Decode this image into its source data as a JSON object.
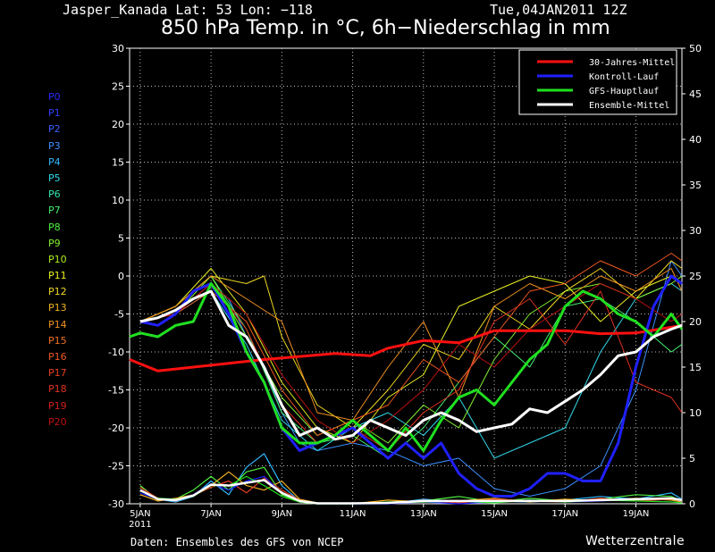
{
  "header": {
    "location": "Jasper_Kanada  Lat: 53 Lon: −118",
    "runtime": "Tue,04JAN2011 12Z",
    "title": "850 hPa Temp. in °C, 6h−Niederschlag in mm"
  },
  "footer": {
    "source": "Daten: Ensembles des GFS von NCEP",
    "brand": "Wetterzentrale"
  },
  "ensemble_members": [
    {
      "label": "P0",
      "color": "#2a2aff"
    },
    {
      "label": "P1",
      "color": "#3040ff"
    },
    {
      "label": "P2",
      "color": "#3a60ff"
    },
    {
      "label": "P3",
      "color": "#3a90ff"
    },
    {
      "label": "P4",
      "color": "#30b8ff"
    },
    {
      "label": "P5",
      "color": "#30d8e8"
    },
    {
      "label": "P6",
      "color": "#30e8b0"
    },
    {
      "label": "P7",
      "color": "#40f070"
    },
    {
      "label": "P8",
      "color": "#50f040"
    },
    {
      "label": "P9",
      "color": "#80f030"
    },
    {
      "label": "P10",
      "color": "#b0f020"
    },
    {
      "label": "P11",
      "color": "#e8f020"
    },
    {
      "label": "P12",
      "color": "#f0d820"
    },
    {
      "label": "P13",
      "color": "#f0b020"
    },
    {
      "label": "P14",
      "color": "#f09020"
    },
    {
      "label": "P15",
      "color": "#f07020"
    },
    {
      "label": "P16",
      "color": "#f05820"
    },
    {
      "label": "P17",
      "color": "#e84020"
    },
    {
      "label": "P18",
      "color": "#e03020"
    },
    {
      "label": "P19",
      "color": "#d02018"
    },
    {
      "label": "P20",
      "color": "#c01010"
    }
  ],
  "chart_data": {
    "type": "line",
    "title": "850 hPa Temp. in °C, 6h−Niederschlag in mm",
    "x_ticks": [
      {
        "day": 5,
        "label": "5JAN",
        "sublabel": "2011"
      },
      {
        "day": 7,
        "label": "7JAN"
      },
      {
        "day": 9,
        "label": "9JAN"
      },
      {
        "day": 11,
        "label": "11JAN"
      },
      {
        "day": 13,
        "label": "13JAN"
      },
      {
        "day": 15,
        "label": "15JAN"
      },
      {
        "day": 17,
        "label": "17JAN"
      },
      {
        "day": 19,
        "label": "19JAN"
      }
    ],
    "xlim": [
      4.7,
      20.3
    ],
    "ylim_left": [
      -30,
      30
    ],
    "yticks_left": [
      -30,
      -25,
      -20,
      -15,
      -10,
      -5,
      0,
      5,
      10,
      15,
      20,
      25,
      30
    ],
    "ylim_right": [
      0,
      50
    ],
    "yticks_right": [
      0,
      5,
      10,
      15,
      20,
      25,
      30,
      35,
      40,
      45,
      50
    ],
    "grid": true,
    "legend_position": "top-right",
    "legend": [
      {
        "name": "30-Jahres-Mittel",
        "color": "#ff1010"
      },
      {
        "name": "Kontroll-Lauf",
        "color": "#2020ff"
      },
      {
        "name": "GFS-Hauptlauf",
        "color": "#20e020"
      },
      {
        "name": "Ensemble-Mittel",
        "color": "#ffffff"
      }
    ],
    "series": [
      {
        "name": "30-Jahres-Mittel",
        "color": "#ff1010",
        "width": 3,
        "x": [
          4.7,
          5.5,
          6.5,
          7.5,
          8.5,
          9.5,
          10.5,
          11.5,
          12.0,
          13.0,
          14.0,
          15.0,
          16.0,
          17.0,
          18.0,
          19.0,
          20.3
        ],
        "y": [
          -11.0,
          -12.5,
          -12.0,
          -11.5,
          -11.0,
          -10.6,
          -10.2,
          -10.5,
          -9.5,
          -8.5,
          -8.8,
          -7.2,
          -7.2,
          -7.2,
          -7.6,
          -7.5,
          -6.5
        ]
      },
      {
        "name": "Kontroll-Lauf",
        "color": "#2020ff",
        "width": 3,
        "x": [
          5.0,
          5.5,
          6.0,
          6.5,
          7.0,
          7.5,
          8.0,
          8.5,
          9.0,
          9.5,
          10.0,
          10.5,
          11.0,
          11.5,
          12.0,
          12.5,
          13.0,
          13.5,
          14.0,
          14.5,
          15.0,
          15.5,
          16.0,
          16.5,
          17.0,
          17.5,
          18.0,
          18.5,
          19.0,
          19.5,
          20.0,
          20.3
        ],
        "y": [
          -6,
          -6.5,
          -5,
          -2,
          -1,
          -5,
          -10,
          -14,
          -20,
          -23,
          -22,
          -21,
          -20,
          -22,
          -24,
          -22,
          -24,
          -22,
          -26,
          -28,
          -29,
          -29,
          -28,
          -26,
          -26,
          -27,
          -27,
          -22,
          -12,
          -4,
          0,
          -1
        ]
      },
      {
        "name": "GFS-Hauptlauf",
        "color": "#20e020",
        "width": 3,
        "x": [
          4.7,
          5.0,
          5.5,
          6.0,
          6.5,
          7.0,
          7.5,
          8.0,
          8.5,
          9.0,
          9.5,
          10.0,
          10.5,
          11.0,
          11.5,
          12.0,
          12.5,
          13.0,
          13.5,
          14.0,
          14.5,
          15.0,
          15.5,
          16.0,
          16.5,
          17.0,
          17.5,
          18.0,
          18.5,
          19.0,
          19.5,
          20.0,
          20.3
        ],
        "y": [
          -8,
          -7.5,
          -8,
          -6.5,
          -6,
          -1,
          -4,
          -10,
          -14,
          -20,
          -22,
          -22,
          -21,
          -19,
          -21,
          -23,
          -20,
          -23,
          -19,
          -16,
          -15,
          -17,
          -14,
          -11,
          -9,
          -4,
          -2,
          -3,
          -5,
          -6,
          -8,
          -5,
          -7
        ]
      },
      {
        "name": "Ensemble-Mittel",
        "color": "#ffffff",
        "width": 3,
        "x": [
          5.0,
          5.5,
          6.0,
          6.5,
          7.0,
          7.5,
          8.0,
          8.5,
          9.0,
          9.5,
          10.0,
          10.5,
          11.0,
          11.5,
          12.0,
          12.5,
          13.0,
          13.5,
          14.0,
          14.5,
          15.0,
          15.5,
          16.0,
          16.5,
          17.0,
          17.5,
          18.0,
          18.5,
          19.0,
          19.5,
          20.0,
          20.3
        ],
        "y": [
          -6,
          -5.5,
          -4.5,
          -3,
          -2,
          -6.5,
          -8,
          -12,
          -17,
          -21,
          -20,
          -21.5,
          -21,
          -19,
          -20,
          -21,
          -19,
          -18,
          -19,
          -20.5,
          -20,
          -19.5,
          -17.5,
          -18,
          -16.5,
          -15,
          -13,
          -10.5,
          -10,
          -8,
          -7,
          -6.5
        ]
      },
      {
        "name": "P3",
        "color": "#3a90ff",
        "width": 1,
        "x": [
          5.0,
          6.0,
          7.0,
          7.5,
          8.0,
          8.5,
          9.0,
          9.5,
          10.0,
          11.0,
          12.0,
          13.0,
          14.0,
          15.0,
          16.0,
          17.0,
          18.0,
          19.0,
          20.0,
          20.3
        ],
        "y": [
          -6,
          -5,
          -1,
          -3,
          -8,
          -12,
          -18,
          -22,
          -23,
          -22,
          -23,
          -25,
          -24,
          -28,
          -29,
          -28,
          -25,
          -15,
          2,
          0
        ]
      },
      {
        "name": "P5",
        "color": "#30d8e8",
        "width": 1,
        "x": [
          5.0,
          6.0,
          7.0,
          8.0,
          9.0,
          10.0,
          11.0,
          12.0,
          13.0,
          14.0,
          15.0,
          16.0,
          17.0,
          18.0,
          19.0,
          20.0,
          20.3
        ],
        "y": [
          -6,
          -5,
          -2,
          -9,
          -19,
          -23,
          -20,
          -18,
          -21,
          -16,
          -24,
          -22,
          -20,
          -10,
          -3,
          -1,
          -2
        ]
      },
      {
        "name": "P7",
        "color": "#40f070",
        "width": 1,
        "x": [
          5.0,
          6.0,
          7.0,
          8.0,
          9.0,
          10.0,
          11.0,
          12.0,
          13.0,
          14.0,
          15.0,
          16.0,
          17.0,
          18.0,
          19.0,
          20.0,
          20.3
        ],
        "y": [
          -6,
          -4,
          0,
          -7,
          -18,
          -22,
          -21,
          -24,
          -20,
          -14,
          -8,
          -12,
          -4,
          -3,
          -6,
          -10,
          -9
        ]
      },
      {
        "name": "P9",
        "color": "#80f030",
        "width": 1,
        "x": [
          5.0,
          6.0,
          7.0,
          8.0,
          9.0,
          10.0,
          11.0,
          12.0,
          13.0,
          14.0,
          15.0,
          16.0,
          17.0,
          18.0,
          19.0,
          20.0,
          20.3
        ],
        "y": [
          -6,
          -5,
          0,
          -8,
          -16,
          -21,
          -19,
          -22,
          -17,
          -20,
          -11,
          -5,
          -2,
          -1,
          -3,
          -1,
          0
        ]
      },
      {
        "name": "P11",
        "color": "#e8f020",
        "width": 1,
        "x": [
          5.0,
          6.0,
          7.0,
          8.0,
          9.0,
          10.0,
          11.0,
          12.0,
          13.0,
          14.0,
          15.0,
          16.0,
          17.0,
          18.0,
          19.0,
          20.0,
          20.3
        ],
        "y": [
          -6,
          -4,
          1,
          -5,
          -14,
          -20,
          -22,
          -16,
          -13,
          -4,
          -2,
          0,
          -1,
          -6,
          -2,
          0,
          -1
        ]
      },
      {
        "name": "P12",
        "color": "#f0d820",
        "width": 1,
        "x": [
          5.0,
          6.0,
          7.0,
          8.0,
          8.5,
          9.0,
          10.0,
          11.0,
          12.0,
          13.0,
          14.0,
          15.0,
          16.0,
          17.0,
          18.0,
          19.0,
          20.0,
          20.3
        ],
        "y": [
          -6,
          -4,
          0,
          -1,
          0,
          -8,
          -17,
          -20,
          -15,
          -9,
          -11,
          -4,
          -7,
          -2,
          1,
          -3,
          2,
          1
        ]
      },
      {
        "name": "P14",
        "color": "#f09020",
        "width": 1,
        "x": [
          5.0,
          6.0,
          7.0,
          8.0,
          9.0,
          9.5,
          10.0,
          11.0,
          12.0,
          13.0,
          14.0,
          15.0,
          16.0,
          17.0,
          18.0,
          19.0,
          20.0,
          20.3
        ],
        "y": [
          -6,
          -4,
          0,
          -3,
          -6,
          -12,
          -18,
          -19,
          -12,
          -6,
          -16,
          -4,
          -1,
          -3,
          0,
          -2,
          1,
          -2
        ]
      },
      {
        "name": "P16",
        "color": "#f05820",
        "width": 1,
        "x": [
          5.0,
          6.0,
          7.0,
          8.0,
          9.0,
          10.0,
          11.0,
          12.0,
          13.0,
          14.0,
          15.0,
          16.0,
          17.0,
          18.0,
          19.0,
          20.0,
          20.3
        ],
        "y": [
          -6,
          -5,
          -2,
          -6,
          -15,
          -21,
          -19,
          -17,
          -11,
          -14,
          -8,
          -2,
          -1,
          2,
          0,
          3,
          2
        ]
      },
      {
        "name": "P18",
        "color": "#e03020",
        "width": 1,
        "x": [
          5.0,
          6.0,
          7.0,
          8.0,
          9.0,
          10.0,
          11.0,
          12.0,
          13.0,
          14.0,
          15.0,
          16.0,
          17.0,
          18.0,
          19.0,
          20.0,
          20.3
        ],
        "y": [
          -6,
          -5,
          -1,
          -7,
          -17,
          -22,
          -20,
          -23,
          -18,
          -15,
          -6,
          -3,
          -9,
          -2,
          -14,
          -16,
          -18
        ]
      },
      {
        "name": "P20",
        "color": "#c01010",
        "width": 1,
        "x": [
          5.0,
          6.0,
          7.0,
          8.0,
          9.0,
          10.0,
          11.0,
          12.0,
          13.0,
          14.0,
          15.0,
          16.0,
          17.0,
          18.0,
          19.0,
          20.0,
          20.3
        ],
        "y": [
          -6,
          -5,
          -1,
          -5,
          -13,
          -19,
          -22,
          -19,
          -15,
          -9,
          -12,
          -7,
          -4,
          -1,
          -3,
          -6,
          -5
        ]
      }
    ],
    "precip_series": [
      {
        "name": "P4",
        "color": "#30b8ff",
        "x": [
          5.0,
          5.5,
          6.0,
          6.5,
          7.0,
          7.5,
          8.0,
          8.5,
          9.0,
          9.5,
          10.0,
          11.0,
          12.0,
          13.0,
          14.0,
          15.0,
          16.0,
          17.0,
          18.0,
          19.0,
          20.0,
          20.3
        ],
        "y": [
          1.5,
          0.5,
          0.2,
          0.8,
          2.5,
          1.0,
          4.0,
          5.5,
          2.0,
          0.3,
          0,
          0,
          0,
          0.5,
          0.2,
          0.3,
          0.2,
          0.4,
          0.8,
          0.5,
          1.2,
          0.5
        ]
      },
      {
        "name": "P8",
        "color": "#50f040",
        "x": [
          5.0,
          5.5,
          6.0,
          6.5,
          7.0,
          7.5,
          8.0,
          8.5,
          9.0,
          9.5,
          10.0,
          11.0,
          12.0,
          13.0,
          14.0,
          15.0,
          16.0,
          17.0,
          18.0,
          19.0,
          20.0,
          20.3
        ],
        "y": [
          2.0,
          0.4,
          0.5,
          1.5,
          3.0,
          1.5,
          3.5,
          4.0,
          1.0,
          0.2,
          0,
          0,
          0.2,
          0.3,
          0.8,
          0.2,
          0.6,
          0.3,
          0.5,
          1.0,
          0.8,
          0.3
        ]
      },
      {
        "name": "P13",
        "color": "#f0b020",
        "x": [
          5.0,
          5.5,
          6.0,
          6.5,
          7.0,
          7.5,
          8.0,
          8.5,
          9.0,
          9.5,
          10.0,
          11.0,
          12.0,
          13.0,
          14.0,
          15.0,
          16.0,
          17.0,
          18.0,
          19.0,
          20.0,
          20.3
        ],
        "y": [
          1.0,
          0.3,
          0.6,
          1.0,
          2.0,
          3.5,
          2.0,
          1.5,
          2.5,
          0.5,
          0.1,
          0,
          0.4,
          0.2,
          0.3,
          0.6,
          0.2,
          0.5,
          0.3,
          0.6,
          0.4,
          0.2
        ]
      },
      {
        "name": "P17",
        "color": "#e84020",
        "x": [
          5.0,
          5.5,
          6.0,
          6.5,
          7.0,
          7.5,
          8.0,
          8.5,
          9.0,
          9.5,
          10.0,
          11.0,
          12.0,
          13.0,
          14.0,
          15.0,
          16.0,
          17.0,
          18.0,
          19.0,
          20.0,
          20.3
        ],
        "y": [
          1.8,
          0.6,
          0.3,
          0.9,
          1.8,
          2.5,
          1.2,
          2.8,
          1.5,
          0.4,
          0,
          0.1,
          0,
          0.4,
          0.1,
          0.5,
          0.3,
          0.2,
          0.6,
          0.3,
          0.5,
          0.4
        ]
      },
      {
        "name": "Kontroll-Lauf",
        "color": "#2020ff",
        "x": [
          5.0,
          5.5,
          6.0,
          6.5,
          7.0,
          7.5,
          8.0,
          8.5,
          9.0,
          9.5,
          10.0,
          11.0,
          12.0,
          13.0,
          14.0,
          15.0,
          16.0,
          17.0,
          18.0,
          19.0,
          20.0,
          20.3
        ],
        "y": [
          1.2,
          0.5,
          0.4,
          1.0,
          2.2,
          1.5,
          2.5,
          3.0,
          1.2,
          0.3,
          0,
          0,
          0,
          0.2,
          0,
          0.2,
          0.4,
          0.2,
          0.3,
          0.5,
          0.6,
          0.3
        ]
      },
      {
        "name": "GFS-Hauptlauf",
        "color": "#20e020",
        "x": [
          5.0,
          5.5,
          6.0,
          6.5,
          7.0,
          7.5,
          8.0,
          8.5,
          9.0,
          9.5,
          10.0,
          11.0,
          12.0,
          13.0,
          14.0,
          15.0,
          16.0,
          17.0,
          18.0,
          19.0,
          20.0,
          20.3
        ],
        "y": [
          1.4,
          0.6,
          0.5,
          0.8,
          2.0,
          2.0,
          3.0,
          2.0,
          0.8,
          0.2,
          0,
          0,
          0.1,
          0.2,
          0.3,
          0.1,
          0.4,
          0.2,
          0.4,
          0.3,
          0.2,
          0.1
        ]
      },
      {
        "name": "Ensemble-Mittel",
        "color": "#ffffff",
        "x": [
          5.0,
          5.5,
          6.0,
          6.5,
          7.0,
          7.5,
          8.0,
          8.5,
          9.0,
          9.5,
          10.0,
          11.0,
          12.0,
          13.0,
          14.0,
          15.0,
          16.0,
          17.0,
          18.0,
          19.0,
          20.0,
          20.3
        ],
        "y": [
          1.5,
          0.5,
          0.4,
          0.9,
          2.1,
          2.0,
          2.3,
          2.6,
          1.2,
          0.3,
          0.05,
          0.05,
          0.1,
          0.3,
          0.3,
          0.3,
          0.3,
          0.3,
          0.4,
          0.5,
          0.6,
          0.4
        ]
      }
    ]
  }
}
